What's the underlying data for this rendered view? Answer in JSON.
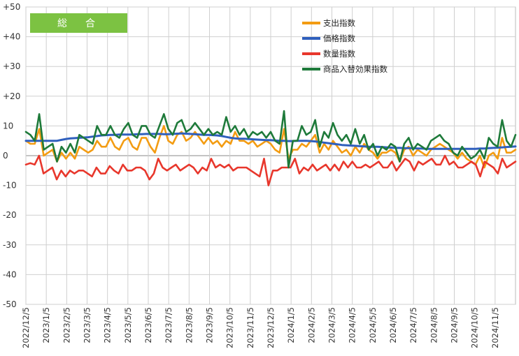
{
  "chart_data": {
    "type": "line",
    "title": "総　合",
    "title_bg": "#7cc242",
    "ylim": [
      -50,
      50
    ],
    "yticks": [
      "+50",
      "+40",
      "+30",
      "+20",
      "10",
      "0",
      "-10",
      "-20",
      "-30",
      "-40",
      "-50"
    ],
    "ytick_values": [
      50,
      40,
      30,
      20,
      10,
      0,
      -10,
      -20,
      -30,
      -40,
      -50
    ],
    "grid": true,
    "legend_position": "top-right",
    "x_tick_labels": [
      "2022/12/5",
      "2023/1/5",
      "2023/2/5",
      "2023/3/5",
      "2023/4/5",
      "2023/5/5",
      "2023/6/5",
      "2023/7/5",
      "2023/8/5",
      "2023/9/5",
      "2023/10/5",
      "2023/11/5",
      "2023/12/5",
      "2024/1/5",
      "2024/2/5",
      "2024/3/5",
      "2024/4/5",
      "2024/5/5",
      "2024/6/5",
      "2024/7/5",
      "2024/8/5",
      "2024/9/5",
      "2024/10/5",
      "2024/11/5"
    ],
    "series": [
      {
        "name": "支出指数",
        "color": "#f39c12",
        "values": [
          5,
          4,
          4,
          9,
          0,
          1,
          2,
          -2,
          1,
          -1,
          1,
          -1,
          3,
          2,
          1,
          2,
          5,
          3,
          3,
          6,
          3,
          2,
          5,
          6,
          3,
          2,
          6,
          6,
          3,
          1,
          6,
          10,
          5,
          4,
          7,
          8,
          5,
          6,
          8,
          6,
          4,
          6,
          4,
          5,
          3,
          5,
          4,
          8,
          5,
          5,
          4,
          5,
          3,
          4,
          5,
          4,
          2,
          1,
          9,
          -1,
          2,
          2,
          4,
          3,
          5,
          7,
          1,
          4,
          2,
          5,
          3,
          1,
          2,
          0,
          3,
          1,
          4,
          2,
          1,
          -1,
          1,
          1,
          2,
          1,
          -2,
          2,
          3,
          0,
          2,
          1,
          0,
          2,
          3,
          4,
          3,
          2,
          1,
          -1,
          1,
          -1,
          -2,
          -3,
          0,
          -4,
          0,
          1,
          -1,
          6,
          1,
          1,
          2
        ]
      },
      {
        "name": "価格指数",
        "color": "#2f5fbd",
        "values": [
          5,
          5,
          5,
          5,
          5,
          5,
          5,
          5,
          5.3,
          5.6,
          5.8,
          5.9,
          6,
          6.1,
          6.2,
          6.4,
          6.6,
          6.8,
          6.9,
          7,
          7,
          7.1,
          7.1,
          7.1,
          7.1,
          7.2,
          7.2,
          7.3,
          7.3,
          7.3,
          7.3,
          7.2,
          7.2,
          7.3,
          7.4,
          7.5,
          7.4,
          7.3,
          7.2,
          7.1,
          7,
          7,
          6.9,
          6.8,
          6.6,
          6.3,
          6,
          5.8,
          5.7,
          5.7,
          5.6,
          5.5,
          5.4,
          5.3,
          5.2,
          5.2,
          5.1,
          5,
          5,
          4.9,
          4.9,
          5,
          5,
          5,
          4.9,
          4.8,
          4.6,
          4.4,
          4.2,
          4,
          3.8,
          3.6,
          3.5,
          3.4,
          3.3,
          3.2,
          3.1,
          3,
          3,
          3,
          2.9,
          2.8,
          2.7,
          2.6,
          2.6,
          2.5,
          2.5,
          2.5,
          2.4,
          2.4,
          2.3,
          2.3,
          2.3,
          2.3,
          2.3,
          2.3,
          2.3,
          2.3,
          2.3,
          2.3,
          2.3,
          2.3,
          2.4,
          2.4,
          2.5,
          2.6,
          2.7,
          2.8,
          2.9,
          3,
          3.1
        ]
      },
      {
        "name": "数量指数",
        "color": "#e8372c",
        "values": [
          -3,
          -2.5,
          -3,
          0,
          -6,
          -5,
          -4,
          -8,
          -5,
          -7,
          -5,
          -6,
          -5,
          -5,
          -6,
          -7,
          -4,
          -6,
          -6,
          -3.5,
          -5,
          -6,
          -3,
          -5,
          -5,
          -4,
          -4,
          -5,
          -8,
          -6,
          -1,
          -4,
          -5,
          -4,
          -3,
          -5,
          -4,
          -3,
          -4,
          -6,
          -4,
          -5,
          -1,
          -4,
          -3,
          -4,
          -3,
          -5,
          -4,
          -4,
          -4,
          -5,
          -6,
          -7,
          -1,
          -10,
          -5,
          -5,
          -4,
          -4,
          -4,
          -1,
          -6,
          -4,
          -5,
          -3,
          -5,
          -4,
          -3,
          -5,
          -3,
          -5,
          -2,
          -4,
          -2,
          -4,
          -4,
          -3,
          -4,
          -3,
          -2,
          -4,
          -4,
          -2,
          -5,
          -3,
          -1,
          -2,
          -5,
          -2,
          -3,
          -2,
          -1,
          -3,
          -3,
          0,
          -3,
          -2,
          -4,
          -4,
          -3,
          -2,
          -3,
          -7,
          -2,
          -3,
          -4,
          -6,
          -1,
          -4,
          -3,
          -2
        ]
      },
      {
        "name": "商品入替効果指数",
        "color": "#1e7a3a",
        "values": [
          8,
          7,
          5,
          14,
          2,
          3,
          4,
          -2,
          3,
          1,
          4,
          1,
          7,
          6,
          5,
          4,
          10,
          7,
          7,
          10,
          7,
          6,
          9,
          11,
          7,
          6,
          10,
          10,
          7,
          6,
          10,
          14,
          9,
          7,
          11,
          12,
          8,
          9,
          11,
          9,
          7,
          9,
          7,
          8,
          7,
          13,
          8,
          10,
          7,
          9,
          6,
          8,
          7,
          8,
          6,
          8,
          5,
          4,
          15,
          -4,
          5,
          5,
          10,
          7,
          8,
          12,
          3,
          8,
          6,
          11,
          7,
          5,
          7,
          4,
          9,
          4,
          7,
          2,
          4,
          0,
          3,
          2,
          4,
          3,
          -2,
          4,
          6,
          2,
          4,
          3,
          2,
          5,
          6,
          7,
          5,
          4,
          1,
          0,
          3,
          1,
          -1,
          0,
          2,
          -1,
          6,
          4,
          3,
          12,
          5,
          3,
          7
        ]
      }
    ]
  }
}
